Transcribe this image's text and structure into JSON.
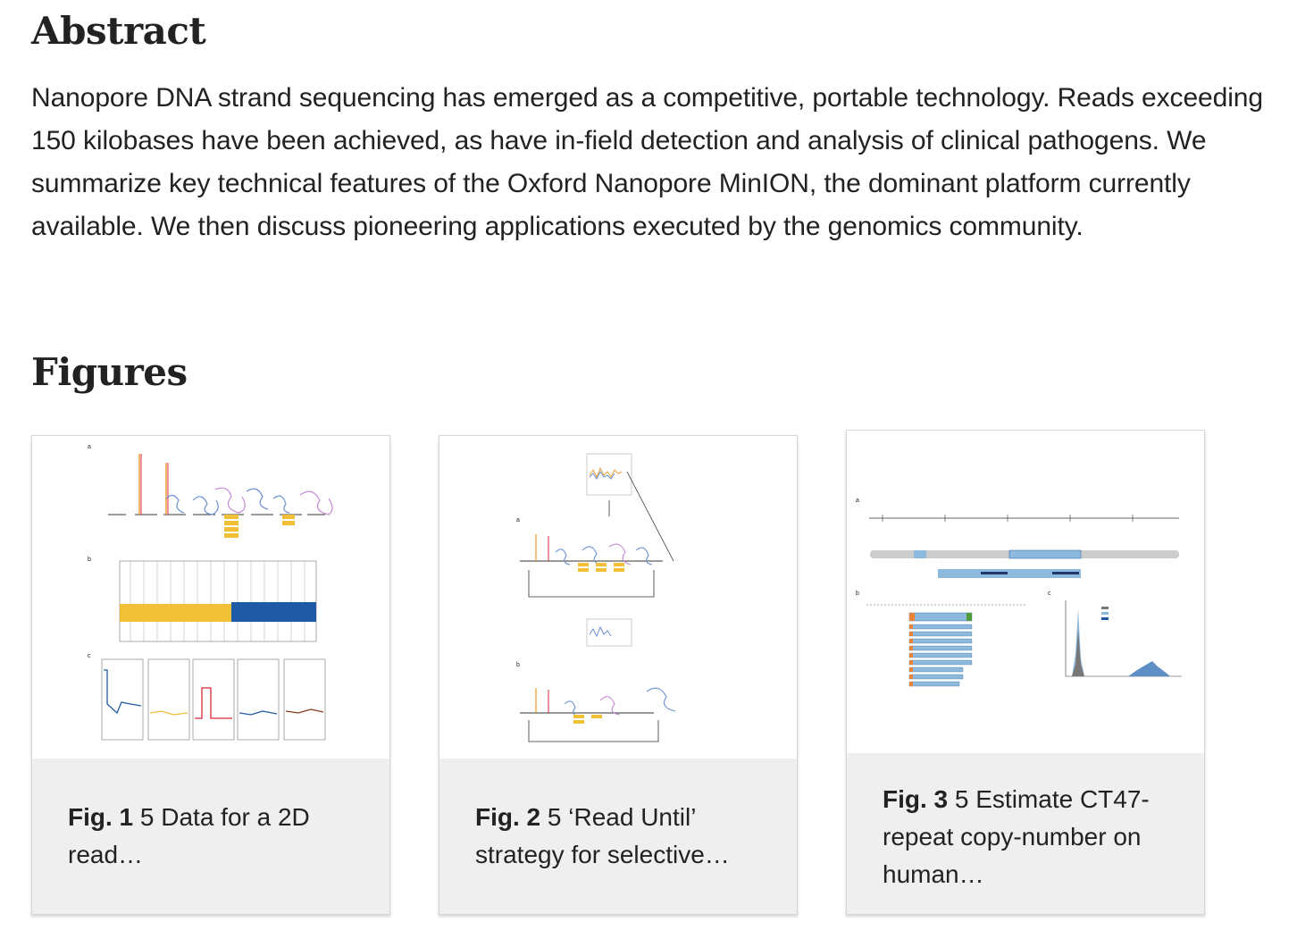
{
  "abstract": {
    "heading": "Abstract",
    "text": "Nanopore DNA strand sequencing has emerged as a competitive, portable technology. Reads exceeding 150 kilobases have been achieved, as have in-field detection and analysis of clinical pathogens. We summarize key technical features of the Oxford Nanopore MinION, the dominant platform currently available. We then discuss pioneering applications executed by the genomics community."
  },
  "figures": {
    "heading": "Figures",
    "items": [
      {
        "label": "Fig. 1",
        "caption": "5 Data for a 2D read…"
      },
      {
        "label": "Fig. 2",
        "caption": "5 ‘Read Until’ strategy for selective…"
      },
      {
        "label": "Fig. 3",
        "caption": "5 Estimate CT47-repeat copy-number on human…"
      }
    ]
  },
  "colors": {
    "text": "#222222",
    "card_bg": "#efefef",
    "yellow": "#f2c037",
    "blue": "#1f5aa6",
    "red": "#d8283a",
    "light_blue": "#8db9dd"
  }
}
